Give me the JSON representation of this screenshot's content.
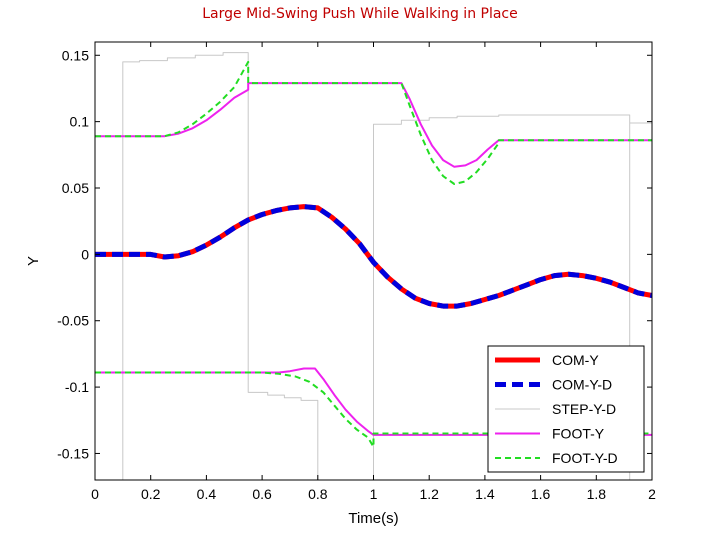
{
  "slide_title": "Large Mid-Swing Push While Walking in Place",
  "chart_data": {
    "type": "line",
    "title": "",
    "xlabel": "Time(s)",
    "ylabel": "Y",
    "xlim": [
      0,
      2
    ],
    "ylim": [
      -0.17,
      0.16
    ],
    "xticks": [
      "0",
      "0.2",
      "0.4",
      "0.6",
      "0.8",
      "1",
      "1.2",
      "1.4",
      "1.6",
      "1.8",
      "2"
    ],
    "yticks": [
      "0.15",
      "0.1",
      "0.05",
      "0",
      "-0.05",
      "-0.1",
      "-0.15"
    ],
    "grid": false,
    "legend_position": "bottom-right",
    "series": [
      {
        "name": "COM-Y",
        "color": "#ff0000",
        "style": "solid-thick",
        "points": [
          [
            0,
            0
          ],
          [
            0.2,
            0
          ],
          [
            0.25,
            -0.002
          ],
          [
            0.3,
            -0.001
          ],
          [
            0.35,
            0.002
          ],
          [
            0.4,
            0.007
          ],
          [
            0.45,
            0.013
          ],
          [
            0.5,
            0.02
          ],
          [
            0.55,
            0.026
          ],
          [
            0.6,
            0.03
          ],
          [
            0.65,
            0.033
          ],
          [
            0.7,
            0.035
          ],
          [
            0.75,
            0.036
          ],
          [
            0.8,
            0.035
          ],
          [
            0.85,
            0.028
          ],
          [
            0.9,
            0.019
          ],
          [
            0.95,
            0.008
          ],
          [
            1.0,
            -0.006
          ],
          [
            1.05,
            -0.017
          ],
          [
            1.1,
            -0.026
          ],
          [
            1.15,
            -0.033
          ],
          [
            1.2,
            -0.037
          ],
          [
            1.25,
            -0.039
          ],
          [
            1.3,
            -0.039
          ],
          [
            1.35,
            -0.037
          ],
          [
            1.4,
            -0.034
          ],
          [
            1.45,
            -0.031
          ],
          [
            1.5,
            -0.027
          ],
          [
            1.55,
            -0.023
          ],
          [
            1.6,
            -0.019
          ],
          [
            1.65,
            -0.016
          ],
          [
            1.7,
            -0.015
          ],
          [
            1.75,
            -0.016
          ],
          [
            1.8,
            -0.018
          ],
          [
            1.85,
            -0.021
          ],
          [
            1.9,
            -0.025
          ],
          [
            1.95,
            -0.029
          ],
          [
            2.0,
            -0.031
          ]
        ]
      },
      {
        "name": "COM-Y-D",
        "color": "#0000dd",
        "style": "dashed-thick",
        "points": [
          [
            0,
            0
          ],
          [
            0.2,
            0
          ],
          [
            0.25,
            -0.002
          ],
          [
            0.3,
            -0.001
          ],
          [
            0.35,
            0.002
          ],
          [
            0.4,
            0.007
          ],
          [
            0.45,
            0.013
          ],
          [
            0.5,
            0.02
          ],
          [
            0.55,
            0.026
          ],
          [
            0.6,
            0.03
          ],
          [
            0.65,
            0.033
          ],
          [
            0.7,
            0.035
          ],
          [
            0.75,
            0.036
          ],
          [
            0.8,
            0.035
          ],
          [
            0.85,
            0.028
          ],
          [
            0.9,
            0.019
          ],
          [
            0.95,
            0.008
          ],
          [
            1.0,
            -0.006
          ],
          [
            1.05,
            -0.017
          ],
          [
            1.1,
            -0.026
          ],
          [
            1.15,
            -0.033
          ],
          [
            1.2,
            -0.037
          ],
          [
            1.25,
            -0.039
          ],
          [
            1.3,
            -0.039
          ],
          [
            1.35,
            -0.037
          ],
          [
            1.4,
            -0.034
          ],
          [
            1.45,
            -0.031
          ],
          [
            1.5,
            -0.027
          ],
          [
            1.55,
            -0.023
          ],
          [
            1.6,
            -0.019
          ],
          [
            1.65,
            -0.016
          ],
          [
            1.7,
            -0.015
          ],
          [
            1.75,
            -0.016
          ],
          [
            1.8,
            -0.018
          ],
          [
            1.85,
            -0.021
          ],
          [
            1.9,
            -0.025
          ],
          [
            1.95,
            -0.029
          ],
          [
            2.0,
            -0.031
          ]
        ]
      },
      {
        "name": "STEP-Y-D",
        "color": "#c8c8c8",
        "style": "thin",
        "points": [
          [
            0.1,
            -0.17
          ],
          [
            0.1,
            0.145
          ],
          [
            0.16,
            0.145
          ],
          [
            0.16,
            0.146
          ],
          [
            0.26,
            0.146
          ],
          [
            0.26,
            0.148
          ],
          [
            0.36,
            0.148
          ],
          [
            0.36,
            0.15
          ],
          [
            0.46,
            0.15
          ],
          [
            0.46,
            0.152
          ],
          [
            0.55,
            0.152
          ],
          [
            0.55,
            -0.104
          ],
          [
            0.62,
            -0.104
          ],
          [
            0.62,
            -0.106
          ],
          [
            0.68,
            -0.106
          ],
          [
            0.68,
            -0.108
          ],
          [
            0.74,
            -0.108
          ],
          [
            0.74,
            -0.11
          ],
          [
            0.8,
            -0.11
          ],
          [
            0.8,
            -0.115
          ],
          [
            0.8,
            -0.17
          ]
        ],
        "points_b": [
          [
            0.79,
            -0.17
          ],
          [
            1.0,
            -0.17
          ],
          [
            1.0,
            0.098
          ],
          [
            1.1,
            0.098
          ],
          [
            1.1,
            0.101
          ],
          [
            1.2,
            0.101
          ],
          [
            1.2,
            0.103
          ],
          [
            1.3,
            0.103
          ],
          [
            1.3,
            0.104
          ],
          [
            1.45,
            0.104
          ],
          [
            1.45,
            0.105
          ],
          [
            1.92,
            0.105
          ],
          [
            1.92,
            -0.17
          ]
        ],
        "points_c": [
          [
            1.92,
            0.099
          ],
          [
            2.0,
            0.099
          ]
        ]
      },
      {
        "name": "FOOT-Y",
        "color": "#ee22ee",
        "style": "solid",
        "points": [
          [
            0,
            0.089
          ],
          [
            0.25,
            0.089
          ],
          [
            0.3,
            0.091
          ],
          [
            0.35,
            0.095
          ],
          [
            0.4,
            0.101
          ],
          [
            0.45,
            0.109
          ],
          [
            0.5,
            0.118
          ],
          [
            0.55,
            0.124
          ],
          [
            0.55,
            0.129
          ],
          [
            1.1,
            0.129
          ],
          [
            1.13,
            0.117
          ],
          [
            1.17,
            0.098
          ],
          [
            1.21,
            0.082
          ],
          [
            1.25,
            0.071
          ],
          [
            1.29,
            0.066
          ],
          [
            1.33,
            0.067
          ],
          [
            1.37,
            0.071
          ],
          [
            1.41,
            0.079
          ],
          [
            1.45,
            0.086
          ],
          [
            2.0,
            0.086
          ]
        ],
        "points_b": [
          [
            0,
            -0.089
          ],
          [
            0.6,
            -0.089
          ],
          [
            0.66,
            -0.089
          ],
          [
            0.7,
            -0.088
          ],
          [
            0.75,
            -0.086
          ],
          [
            0.79,
            -0.086
          ],
          [
            0.82,
            -0.094
          ],
          [
            0.86,
            -0.106
          ],
          [
            0.9,
            -0.117
          ],
          [
            0.94,
            -0.126
          ],
          [
            0.98,
            -0.133
          ],
          [
            1.0,
            -0.136
          ],
          [
            2.0,
            -0.136
          ]
        ]
      },
      {
        "name": "FOOT-Y-D",
        "color": "#22dd22",
        "style": "dashed",
        "points": [
          [
            0,
            0.089
          ],
          [
            0.25,
            0.089
          ],
          [
            0.3,
            0.092
          ],
          [
            0.35,
            0.098
          ],
          [
            0.4,
            0.106
          ],
          [
            0.45,
            0.115
          ],
          [
            0.5,
            0.126
          ],
          [
            0.55,
            0.145
          ],
          [
            0.55,
            0.129
          ],
          [
            1.1,
            0.129
          ],
          [
            1.13,
            0.112
          ],
          [
            1.17,
            0.09
          ],
          [
            1.21,
            0.071
          ],
          [
            1.25,
            0.059
          ],
          [
            1.29,
            0.053
          ],
          [
            1.33,
            0.055
          ],
          [
            1.37,
            0.062
          ],
          [
            1.41,
            0.072
          ],
          [
            1.45,
            0.084
          ],
          [
            1.45,
            0.086
          ],
          [
            2.0,
            0.086
          ]
        ],
        "points_b": [
          [
            0,
            -0.089
          ],
          [
            0.6,
            -0.089
          ],
          [
            0.66,
            -0.09
          ],
          [
            0.72,
            -0.092
          ],
          [
            0.77,
            -0.096
          ],
          [
            0.82,
            -0.104
          ],
          [
            0.86,
            -0.114
          ],
          [
            0.9,
            -0.124
          ],
          [
            0.94,
            -0.132
          ],
          [
            0.98,
            -0.138
          ],
          [
            1.0,
            -0.145
          ],
          [
            1.0,
            -0.135
          ],
          [
            2.0,
            -0.135
          ]
        ]
      }
    ]
  }
}
